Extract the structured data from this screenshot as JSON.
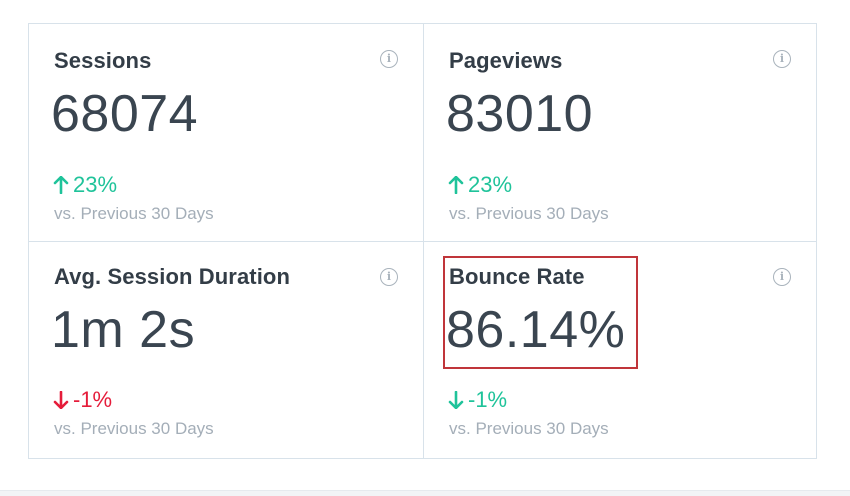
{
  "metrics": [
    {
      "title": "Sessions",
      "value": "68074",
      "change": "23%",
      "direction": "up",
      "compare": "vs. Previous 30 Days"
    },
    {
      "title": "Pageviews",
      "value": "83010",
      "change": "23%",
      "direction": "up",
      "compare": "vs. Previous 30 Days"
    },
    {
      "title": "Avg. Session Duration",
      "value": "1m 2s",
      "change": "-1%",
      "direction": "down",
      "compare": "vs. Previous 30 Days"
    },
    {
      "title": "Bounce Rate",
      "value": "86.14%",
      "change": "-1%",
      "direction": "down",
      "compare": "vs. Previous 30 Days"
    }
  ],
  "info_glyph": "i",
  "colors": {
    "positive": "#1fc39a",
    "negative": "#e51c3a",
    "highlight": "#c0353a"
  },
  "icons": {
    "info": "info-circle-icon",
    "up": "arrow-up-icon",
    "down": "arrow-down-icon"
  }
}
